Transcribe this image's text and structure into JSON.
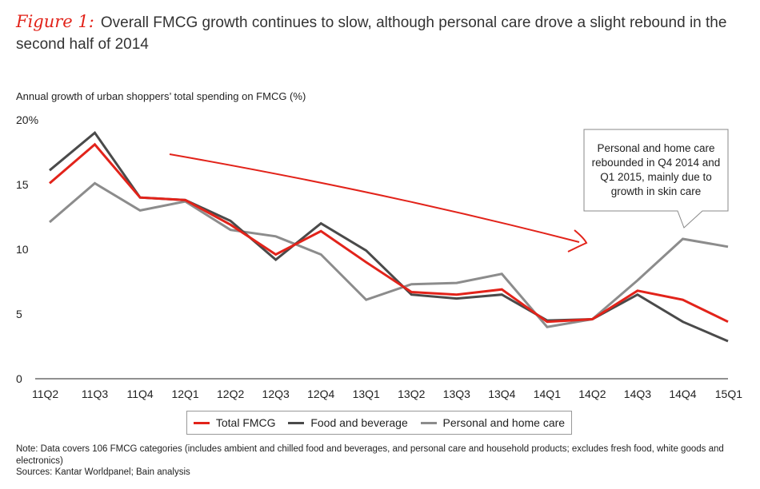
{
  "title": {
    "figure_label": "Figure 1:",
    "text": "Overall FMCG growth continues to slow, although personal care drove a slight rebound in the second half of 2014"
  },
  "colors": {
    "total": "#e2231a",
    "food": "#4a4a4a",
    "personal": "#8c8c8c",
    "arrow": "#e2231a"
  },
  "chart_data": {
    "type": "line",
    "title": "Annual growth of urban shoppers’ total spending on FMCG (%)",
    "categories": [
      "11Q2",
      "11Q3",
      "11Q4",
      "12Q1",
      "12Q2",
      "12Q3",
      "12Q4",
      "13Q1",
      "13Q2",
      "13Q3",
      "13Q4",
      "14Q1",
      "14Q2",
      "14Q3",
      "14Q4",
      "15Q1"
    ],
    "ylim": [
      0,
      20
    ],
    "yticks": [
      "0",
      "5",
      "10",
      "15",
      "20%"
    ],
    "series": [
      {
        "name": "Total FMCG",
        "key": "total",
        "values": [
          15.1,
          18.1,
          14.0,
          13.8,
          11.9,
          9.6,
          11.4,
          9.0,
          6.7,
          6.5,
          6.9,
          4.4,
          4.6,
          6.8,
          6.1,
          4.4
        ]
      },
      {
        "name": "Food and beverage",
        "key": "food",
        "values": [
          16.1,
          19.0,
          14.0,
          13.8,
          12.2,
          9.2,
          12.0,
          9.9,
          6.5,
          6.2,
          6.5,
          4.5,
          4.6,
          6.5,
          4.4,
          2.9
        ]
      },
      {
        "name": "Personal and home care",
        "key": "personal",
        "values": [
          12.1,
          15.1,
          13.0,
          13.7,
          11.5,
          11.0,
          9.6,
          6.1,
          7.3,
          7.4,
          8.1,
          4.0,
          4.6,
          7.6,
          10.8,
          10.2
        ]
      }
    ],
    "annotation": "Personal and home care rebounded in Q4 2014 and Q1 2015, mainly due to growth in skin care"
  },
  "legend": {
    "items": [
      {
        "label": "Total FMCG"
      },
      {
        "label": "Food and beverage"
      },
      {
        "label": "Personal and home care"
      }
    ]
  },
  "footer": {
    "note": "Note: Data covers 106 FMCG categories (includes ambient and chilled food and beverages, and personal care and household products; excludes fresh food, white goods and electronics)",
    "sources": "Sources: Kantar Worldpanel; Bain analysis"
  }
}
